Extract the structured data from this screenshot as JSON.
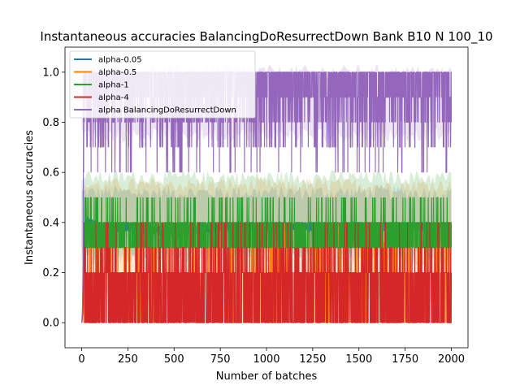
{
  "chart_data": {
    "type": "line",
    "title": "Instantaneous accuracies BalancingDoResurrectDown Bank B10 N 100_10",
    "xlabel": "Number of batches",
    "ylabel": "Instantaneous accuracies",
    "xlim": [
      -90,
      2090
    ],
    "ylim": [
      -0.1,
      1.1
    ],
    "xticks": [
      0,
      250,
      500,
      750,
      1000,
      1250,
      1500,
      1750,
      2000
    ],
    "yticks": [
      0.0,
      0.2,
      0.4,
      0.6,
      0.8,
      1.0
    ],
    "xtick_labels": [
      "0",
      "250",
      "500",
      "750",
      "1000",
      "1250",
      "1500",
      "1750",
      "2000"
    ],
    "ytick_labels": [
      "0.0",
      "0.2",
      "0.4",
      "0.6",
      "0.8",
      "1.0"
    ],
    "grid": false,
    "legend_position": "top-left",
    "series": [
      {
        "name": "alpha-0.05",
        "color": "#1f77b4",
        "values": [
          [
            0,
            0.0
          ],
          [
            20,
            0.42
          ],
          [
            100,
            0.4
          ],
          [
            250,
            0.4
          ],
          [
            500,
            0.38
          ],
          [
            750,
            0.4
          ],
          [
            1000,
            0.4
          ],
          [
            1250,
            0.4
          ],
          [
            1500,
            0.4
          ],
          [
            1750,
            0.4
          ],
          [
            2000,
            0.4
          ]
        ]
      },
      {
        "name": "alpha-0.5",
        "color": "#ff7f0e",
        "values": [
          [
            0,
            0.0
          ],
          [
            20,
            0.3
          ],
          [
            100,
            0.3
          ],
          [
            250,
            0.3
          ],
          [
            500,
            0.3
          ],
          [
            750,
            0.3
          ],
          [
            1000,
            0.3
          ],
          [
            1250,
            0.3
          ],
          [
            1500,
            0.32
          ],
          [
            1750,
            0.32
          ],
          [
            2000,
            0.33
          ]
        ]
      },
      {
        "name": "alpha-1",
        "color": "#2ca02c",
        "values": [
          [
            0,
            0.0
          ],
          [
            20,
            0.34
          ],
          [
            100,
            0.35
          ],
          [
            250,
            0.37
          ],
          [
            500,
            0.38
          ],
          [
            750,
            0.39
          ],
          [
            1000,
            0.39
          ],
          [
            1250,
            0.4
          ],
          [
            1500,
            0.41
          ],
          [
            1750,
            0.42
          ],
          [
            2000,
            0.44
          ]
        ]
      },
      {
        "name": "alpha-4",
        "color": "#d62728",
        "values": [
          [
            0,
            0.0
          ],
          [
            20,
            0.2
          ],
          [
            100,
            0.2
          ],
          [
            250,
            0.2
          ],
          [
            500,
            0.2
          ],
          [
            750,
            0.2
          ],
          [
            1000,
            0.2
          ],
          [
            1250,
            0.2
          ],
          [
            1500,
            0.2
          ],
          [
            1750,
            0.2
          ],
          [
            2000,
            0.2
          ]
        ]
      },
      {
        "name": "alpha BalancingDoResurrectDown",
        "color": "#9467bd",
        "values": [
          [
            0,
            0.0
          ],
          [
            20,
            0.8
          ],
          [
            100,
            0.9
          ],
          [
            250,
            0.9
          ],
          [
            500,
            0.9
          ],
          [
            750,
            0.9
          ],
          [
            1000,
            0.9
          ],
          [
            1250,
            0.9
          ],
          [
            1500,
            0.9
          ],
          [
            1750,
            0.9
          ],
          [
            2000,
            0.9
          ]
        ]
      }
    ]
  }
}
